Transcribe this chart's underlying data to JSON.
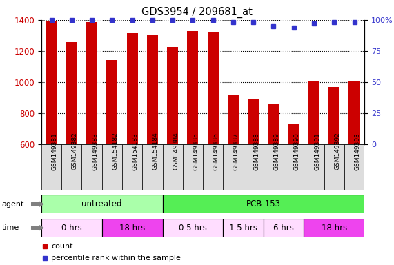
{
  "title": "GDS3954 / 209681_at",
  "samples": [
    "GSM149381",
    "GSM149382",
    "GSM149383",
    "GSM154182",
    "GSM154183",
    "GSM154184",
    "GSM149384",
    "GSM149385",
    "GSM149386",
    "GSM149387",
    "GSM149388",
    "GSM149389",
    "GSM149390",
    "GSM149391",
    "GSM149392",
    "GSM149393"
  ],
  "counts": [
    1395,
    1258,
    1385,
    1140,
    1315,
    1300,
    1228,
    1330,
    1325,
    920,
    895,
    860,
    730,
    1010,
    970,
    1010
  ],
  "percentile_values": [
    100,
    100,
    100,
    100,
    100,
    100,
    100,
    100,
    100,
    98,
    98,
    95,
    94,
    97,
    98,
    98
  ],
  "bar_color": "#cc0000",
  "dot_color": "#3333cc",
  "ylim_left": [
    600,
    1400
  ],
  "ylim_right": [
    0,
    100
  ],
  "yticks_left": [
    600,
    800,
    1000,
    1200,
    1400
  ],
  "yticks_right": [
    0,
    25,
    50,
    75,
    100
  ],
  "agent_groups": [
    {
      "label": "untreated",
      "start": 0,
      "end": 6,
      "color": "#aaffaa"
    },
    {
      "label": "PCB-153",
      "start": 6,
      "end": 16,
      "color": "#55ee55"
    }
  ],
  "time_groups": [
    {
      "label": "0 hrs",
      "start": 0,
      "end": 3,
      "color": "#ffddff"
    },
    {
      "label": "18 hrs",
      "start": 3,
      "end": 6,
      "color": "#ee44ee"
    },
    {
      "label": "0.5 hrs",
      "start": 6,
      "end": 9,
      "color": "#ffddff"
    },
    {
      "label": "1.5 hrs",
      "start": 9,
      "end": 11,
      "color": "#ffddff"
    },
    {
      "label": "6 hrs",
      "start": 11,
      "end": 13,
      "color": "#ffddff"
    },
    {
      "label": "18 hrs",
      "start": 13,
      "end": 16,
      "color": "#ee44ee"
    }
  ],
  "legend_count_color": "#cc0000",
  "legend_dot_color": "#3333cc",
  "background_color": "#ffffff",
  "plot_bg_color": "#ffffff",
  "tick_bg_color": "#dddddd"
}
